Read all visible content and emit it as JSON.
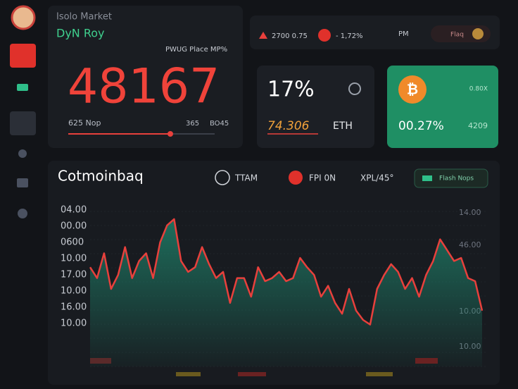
{
  "header": {
    "subtitle": "Isolo Market",
    "name": "DyN Roy",
    "tag": "PWUG Place MP%"
  },
  "price": {
    "value": "48167",
    "left": "625 Nop",
    "right1": "365",
    "right2": "BO45"
  },
  "ticker": {
    "a": "2700 0.75",
    "b": "- 1,72%",
    "c": "PM",
    "d": "Flaq"
  },
  "eth_card": {
    "percent": "17%",
    "price": "74.306",
    "symbol": "ETH"
  },
  "btc_card": {
    "top": "0.80X",
    "percent": "00.27%",
    "right": "4209"
  },
  "chart": {
    "title": "Cotmoinbaq",
    "legend": [
      "TTAM",
      "FPI 0N",
      "XPL/45°"
    ],
    "button": "Flash Nops",
    "left_labels": [
      "04.00",
      "00.00",
      "0600",
      "10.00",
      "17.00",
      "10.00",
      "16.00",
      "10.00"
    ],
    "right_labels": [
      "14.00",
      "46.00",
      "10.00",
      "10.00"
    ],
    "ylim": [
      0,
      100
    ],
    "line_color": "#e8403c",
    "fill_color": "#1f8a70",
    "values": [
      64,
      57,
      73,
      50,
      59,
      77,
      57,
      68,
      73,
      57,
      80,
      91,
      95,
      68,
      61,
      64,
      77,
      66,
      57,
      61,
      41,
      57,
      57,
      45,
      64,
      55,
      57,
      61,
      55,
      57,
      70,
      64,
      59,
      45,
      52,
      41,
      34,
      50,
      36,
      30,
      27,
      50,
      59,
      66,
      61,
      50,
      57,
      45,
      59,
      68,
      82,
      75,
      68,
      70,
      57,
      55,
      36
    ]
  }
}
